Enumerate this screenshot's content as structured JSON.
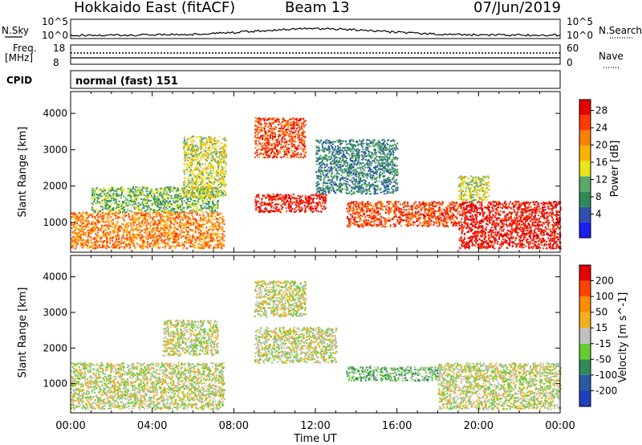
{
  "header": {
    "title": "Hokkaido East (fitACF)",
    "beam": "Beam 13",
    "date": "07/Jun/2019"
  },
  "panels": {
    "nsky_label": "N.Sky",
    "nsky_ticks": [
      "10^5",
      "10^0"
    ],
    "nsearch_label": "N.Search",
    "nsearch_ticks": [
      "10^5",
      "10^0"
    ],
    "freq_label_1": "Freq.",
    "freq_label_2": "[MHz]",
    "freq_ticks": [
      "18",
      "8"
    ],
    "nave_label": "Nave",
    "nave_ticks": [
      "60",
      "0"
    ],
    "cpid_label": "CPID",
    "cpid_value": "normal (fast) 151"
  },
  "chart_data": [
    {
      "type": "heatmap",
      "panel": "power",
      "ylabel": "Slant Range [km]",
      "xlabel": "Time UT",
      "x_ticks": [
        "00:00",
        "04:00",
        "08:00",
        "12:00",
        "16:00",
        "20:00",
        "00:00"
      ],
      "x_range_hours": [
        0,
        24
      ],
      "y_ticks": [
        1000,
        2000,
        3000,
        4000
      ],
      "y_range_km": [
        180,
        4600
      ],
      "colorbar": {
        "label": "Power [dB]",
        "ticks": [
          "4",
          "8",
          "12",
          "16",
          "20",
          "24",
          "28"
        ],
        "colors": [
          "#1e1ef0",
          "#2f4fb0",
          "#2e8b57",
          "#5aa86a",
          "#e6e619",
          "#ffb300",
          "#ff7f00",
          "#ff3a00",
          "#e60000"
        ]
      },
      "echo_regions": [
        {
          "t0": 0.0,
          "t1": 7.5,
          "r0": 300,
          "r1": 1300,
          "level": 6
        },
        {
          "t0": 1.0,
          "t1": 7.2,
          "r0": 1300,
          "r1": 2000,
          "level": 3
        },
        {
          "t0": 5.5,
          "t1": 7.6,
          "r0": 1700,
          "r1": 3400,
          "level": 4
        },
        {
          "t0": 9.0,
          "t1": 12.5,
          "r0": 1300,
          "r1": 1800,
          "level": 8
        },
        {
          "t0": 9.0,
          "t1": 11.5,
          "r0": 2800,
          "r1": 3900,
          "level": 7
        },
        {
          "t0": 12.0,
          "t1": 16.0,
          "r0": 1800,
          "r1": 3300,
          "level": 2
        },
        {
          "t0": 13.5,
          "t1": 19.0,
          "r0": 900,
          "r1": 1600,
          "level": 7
        },
        {
          "t0": 19.0,
          "t1": 24.0,
          "r0": 300,
          "r1": 1600,
          "level": 8
        },
        {
          "t0": 19.0,
          "t1": 20.5,
          "r0": 1600,
          "r1": 2300,
          "level": 4
        }
      ]
    },
    {
      "type": "heatmap",
      "panel": "velocity",
      "ylabel": "Slant Range [km]",
      "xlabel": "Time UT",
      "x_ticks": [
        "00:00",
        "04:00",
        "08:00",
        "12:00",
        "16:00",
        "20:00",
        "00:00"
      ],
      "x_range_hours": [
        0,
        24
      ],
      "y_ticks": [
        1000,
        2000,
        3000,
        4000
      ],
      "y_range_km": [
        180,
        4600
      ],
      "colorbar": {
        "label": "Velocity [m s^-1]",
        "ticks": [
          "200",
          "100",
          "50",
          "15",
          "-15",
          "-50",
          "-100",
          "-200"
        ],
        "colors": [
          "#1f3fbf",
          "#2a5aa0",
          "#2e8b57",
          "#66cc33",
          "#c0c0c0",
          "#f0b020",
          "#ff8c00",
          "#ff4500",
          "#e60000"
        ]
      },
      "echo_regions": [
        {
          "t0": 0.0,
          "t1": 7.5,
          "r0": 300,
          "r1": 1600,
          "level": 4
        },
        {
          "t0": 4.5,
          "t1": 7.2,
          "r0": 1800,
          "r1": 2800,
          "level": 4
        },
        {
          "t0": 9.0,
          "t1": 13.0,
          "r0": 1600,
          "r1": 2600,
          "level": 4
        },
        {
          "t0": 9.0,
          "t1": 11.5,
          "r0": 2900,
          "r1": 3900,
          "level": 4
        },
        {
          "t0": 13.5,
          "t1": 18.0,
          "r0": 1100,
          "r1": 1500,
          "level": 3
        },
        {
          "t0": 18.0,
          "t1": 24.0,
          "r0": 300,
          "r1": 1600,
          "level": 4
        }
      ]
    }
  ]
}
